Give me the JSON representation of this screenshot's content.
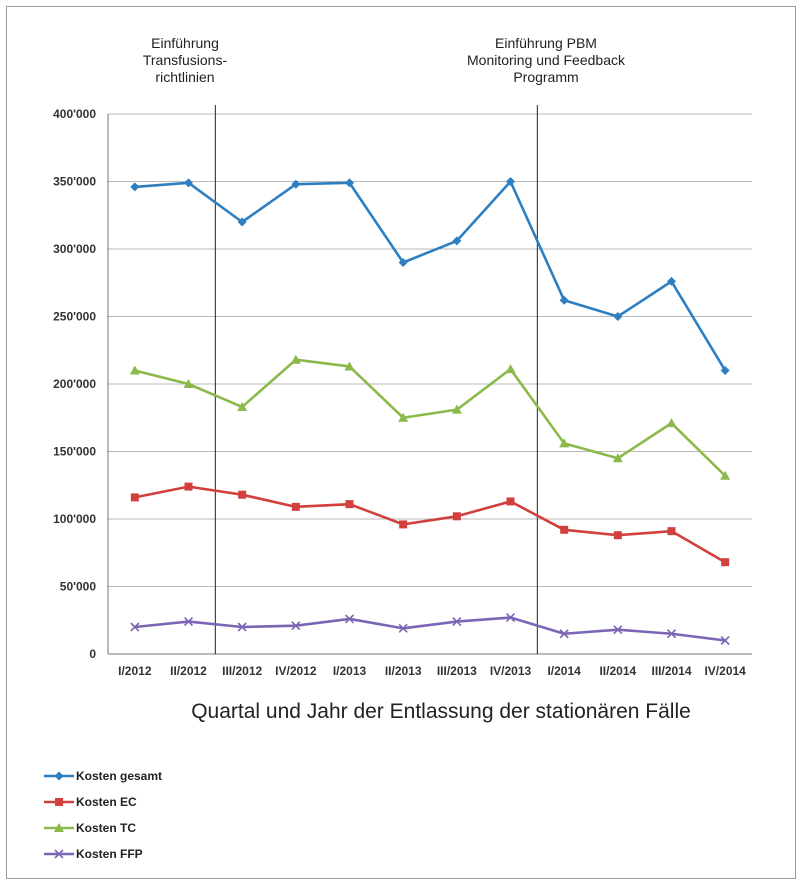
{
  "chart_data": {
    "type": "line",
    "title": "",
    "xlabel": "Quartal und Jahr der Entlassung der stationären Fälle",
    "ylabel": "",
    "ylim": [
      0,
      400000
    ],
    "yticks": [
      0,
      50000,
      100000,
      150000,
      200000,
      250000,
      300000,
      350000,
      400000
    ],
    "ytick_labels": [
      "0",
      "50'000",
      "100'000",
      "150'000",
      "200'000",
      "250'000",
      "300'000",
      "350'000",
      "400'000"
    ],
    "categories": [
      "I/2012",
      "II/2012",
      "III/2012",
      "IV/2012",
      "I/2013",
      "II/2013",
      "III/2013",
      "IV/2013",
      "I/2014",
      "II/2014",
      "III/2014",
      "IV/2014"
    ],
    "grid": true,
    "legend_position": "bottom-left",
    "series": [
      {
        "name": "Kosten gesamt",
        "color": "#2e7fc1",
        "marker": "diamond",
        "values": [
          346000,
          349000,
          320000,
          348000,
          349000,
          290000,
          306000,
          350000,
          262000,
          250000,
          276000,
          210000
        ]
      },
      {
        "name": "Kosten EC",
        "color": "#d2403e",
        "marker": "square",
        "values": [
          116000,
          124000,
          118000,
          109000,
          111000,
          96000,
          102000,
          113000,
          92000,
          88000,
          91000,
          68000
        ]
      },
      {
        "name": "Kosten TC",
        "color": "#8cb94b",
        "marker": "triangle",
        "values": [
          210000,
          200000,
          183000,
          218000,
          213000,
          175000,
          181000,
          211000,
          156000,
          145000,
          171000,
          132000
        ]
      },
      {
        "name": "Kosten FFP",
        "color": "#7b66b4",
        "marker": "x",
        "values": [
          20000,
          24000,
          20000,
          21000,
          26000,
          19000,
          24000,
          27000,
          15000,
          18000,
          15000,
          10000
        ]
      }
    ],
    "annotations": [
      {
        "after_category": "II/2012",
        "lines": [
          "Einführung",
          "Transfusions-",
          "richtlinien"
        ]
      },
      {
        "after_category": "IV/2013",
        "lines": [
          "Einführung PBM",
          "Monitoring und Feedback",
          "Programm"
        ]
      }
    ]
  }
}
